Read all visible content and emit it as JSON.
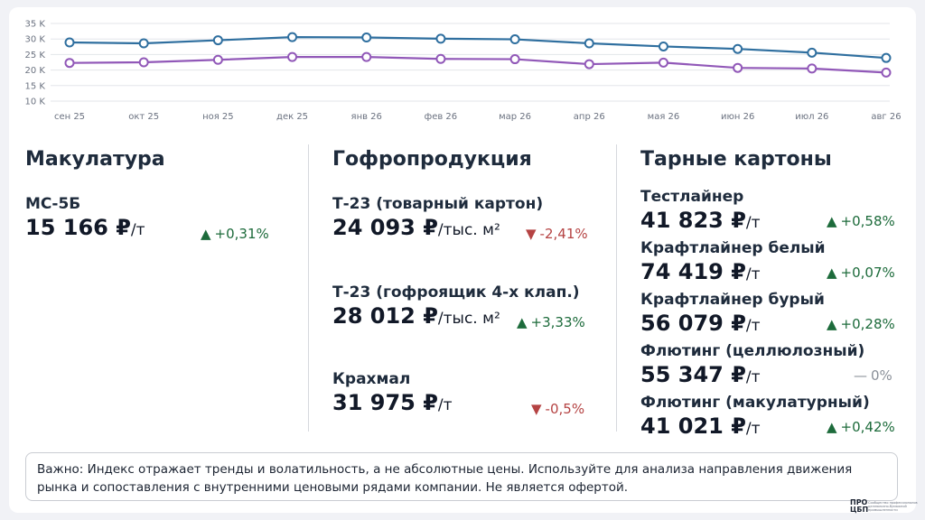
{
  "chart_data": {
    "type": "line",
    "categories": [
      "сен 25",
      "окт 25",
      "ноя 25",
      "дек 25",
      "янв 26",
      "фев 26",
      "мар 26",
      "апр 26",
      "мая 26",
      "июн 26",
      "июл 26",
      "авг 26"
    ],
    "y_ticks": [
      "35 K",
      "30 K",
      "25 K",
      "20 K",
      "15 K",
      "10 K"
    ],
    "ylim": [
      10000,
      35000
    ],
    "grid": true,
    "series": [
      {
        "color": "#2f6f9f",
        "values": [
          28900,
          28600,
          29600,
          30600,
          30500,
          30100,
          29900,
          28600,
          27600,
          26800,
          25600,
          23900
        ]
      },
      {
        "color": "#9158b8",
        "values": [
          22300,
          22500,
          23300,
          24200,
          24200,
          23600,
          23500,
          21900,
          22400,
          20700,
          20500,
          19200
        ]
      }
    ]
  },
  "sections": {
    "makulatura": {
      "title": "Макулатура",
      "items": [
        {
          "label": "МС-5Б",
          "value": "15 166 ₽",
          "unit": "/т",
          "change": "+0,31%",
          "direction": "up",
          "arrow": "▲"
        }
      ]
    },
    "gofro": {
      "title": "Гофропродукция",
      "items": [
        {
          "label": "Т-23 (товарный картон)",
          "value": "24 093 ₽",
          "unit": "/тыс. м²",
          "change": "-2,41%",
          "direction": "down",
          "arrow": "▼"
        },
        {
          "label": "Т-23 (гофроящик 4-х клап.)",
          "value": "28 012 ₽",
          "unit": "/тыс. м²",
          "change": "+3,33%",
          "direction": "up",
          "arrow": "▲"
        },
        {
          "label": "Крахмал",
          "value": "31 975 ₽",
          "unit": "/т",
          "change": "-0,5%",
          "direction": "down",
          "arrow": "▼"
        }
      ]
    },
    "tarnye": {
      "title": "Тарные картоны",
      "items": [
        {
          "label": "Тестлайнер",
          "value": "41 823 ₽",
          "unit": "/т",
          "change": "+0,58%",
          "direction": "up",
          "arrow": "▲"
        },
        {
          "label": "Крафтлайнер белый",
          "value": "74 419 ₽",
          "unit": "/т",
          "change": "+0,07%",
          "direction": "up",
          "arrow": "▲"
        },
        {
          "label": "Крафтлайнер бурый",
          "value": "56 079 ₽",
          "unit": "/т",
          "change": "+0,28%",
          "direction": "up",
          "arrow": "▲"
        },
        {
          "label": "Флютинг (целлюлозный)",
          "value": "55 347 ₽",
          "unit": "/т",
          "change": "0%",
          "direction": "flat",
          "arrow": "—"
        },
        {
          "label": "Флютинг (макулатурный)",
          "value": "41 021 ₽",
          "unit": "/т",
          "change": "+0,42%",
          "direction": "up",
          "arrow": "▲"
        }
      ]
    }
  },
  "note": "Важно: Индекс отражает тренды и волатильность, а не абсолютные цены. Используйте для анализа направления движения рынка и сопоставления с внутренними ценовыми рядами компании. Не является офертой.",
  "logo": {
    "mark_line1": "ПРО",
    "mark_line2": "ЦБП",
    "text": "Сообщество профессионалов целлюлозно-бумажной промышленности"
  }
}
